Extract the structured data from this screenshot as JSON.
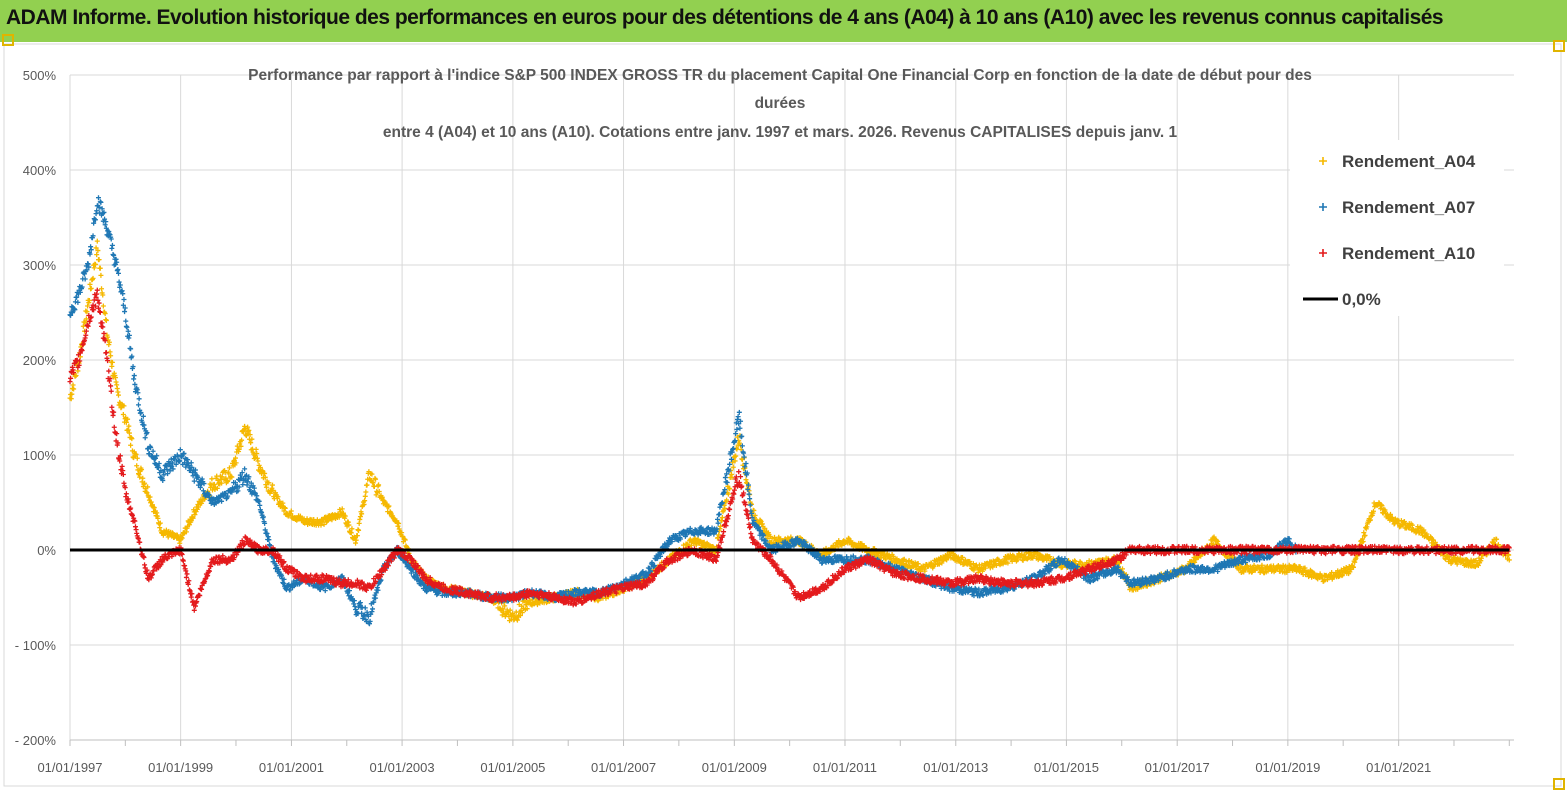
{
  "header": {
    "title": "ADAM Informe. Evolution historique des performances en euros pour des détentions de 4 ans (A04) à 10 ans (A10) avec les revenus connus capitalisés"
  },
  "chart_data": {
    "type": "scatter",
    "title_lines": [
      "Performance par rapport à l'indice S&P 500 INDEX GROSS TR  du placement Capital One Financial Corp en fonction de la date de début pour des",
      "durées",
      "entre 4 (A04) et 10 ans (A10).  Cotations entre janv. 1997 et mars. 2026. Revenus CAPITALISES depuis janv. 1"
    ],
    "xlabel": "",
    "ylabel": "",
    "ylim": [
      -200,
      500
    ],
    "y_ticks": [
      500,
      400,
      300,
      200,
      100,
      0,
      -100,
      -200
    ],
    "y_tick_labels": [
      "500%",
      "400%",
      "300%",
      "200%",
      "100%",
      "0%",
      "- 100%",
      "- 200%"
    ],
    "x_range": [
      "1997-01-01",
      "2023-02-01"
    ],
    "x_tick_labels": [
      "01/01/1997",
      "01/01/1999",
      "01/01/2001",
      "01/01/2003",
      "01/01/2005",
      "01/01/2007",
      "01/01/2009",
      "01/01/2011",
      "01/01/2013",
      "01/01/2015",
      "01/01/2017",
      "01/01/2019",
      "01/01/2021"
    ],
    "grid": true,
    "legend_position": "top-right",
    "colors": {
      "Rendement_A04": "#f5b800",
      "Rendement_A07": "#1f77b4",
      "Rendement_A10": "#e31a1c",
      "0,0%": "#000000"
    },
    "legend": [
      "Rendement_A04",
      "Rendement_A07",
      "Rendement_A10",
      "0,0%"
    ],
    "series": [
      {
        "name": "Rendement_A04",
        "marker": "+",
        "points": [
          [
            "1997-01-01",
            160
          ],
          [
            "1997-03-01",
            200
          ],
          [
            "1997-05-01",
            260
          ],
          [
            "1997-07-01",
            320
          ],
          [
            "1997-09-01",
            230
          ],
          [
            "1997-11-01",
            170
          ],
          [
            "1998-01-01",
            140
          ],
          [
            "1998-03-01",
            100
          ],
          [
            "1998-06-01",
            60
          ],
          [
            "1998-09-01",
            20
          ],
          [
            "1999-01-01",
            10
          ],
          [
            "1999-04-01",
            40
          ],
          [
            "1999-08-01",
            70
          ],
          [
            "1999-12-01",
            80
          ],
          [
            "2000-03-01",
            130
          ],
          [
            "2000-06-01",
            90
          ],
          [
            "2000-09-01",
            60
          ],
          [
            "2000-12-01",
            40
          ],
          [
            "2001-04-01",
            30
          ],
          [
            "2001-08-01",
            30
          ],
          [
            "2001-12-01",
            40
          ],
          [
            "2002-03-01",
            10
          ],
          [
            "2002-06-01",
            80
          ],
          [
            "2002-09-01",
            50
          ],
          [
            "2002-12-01",
            30
          ],
          [
            "2003-03-01",
            -10
          ],
          [
            "2003-06-01",
            -30
          ],
          [
            "2003-10-01",
            -40
          ],
          [
            "2004-03-01",
            -45
          ],
          [
            "2004-08-01",
            -50
          ],
          [
            "2005-01-01",
            -70
          ],
          [
            "2005-05-01",
            -55
          ],
          [
            "2005-10-01",
            -50
          ],
          [
            "2006-03-01",
            -45
          ],
          [
            "2006-08-01",
            -50
          ],
          [
            "2007-01-01",
            -40
          ],
          [
            "2007-06-01",
            -30
          ],
          [
            "2007-11-01",
            -10
          ],
          [
            "2008-04-01",
            10
          ],
          [
            "2008-09-01",
            0
          ],
          [
            "2009-02-01",
            120
          ],
          [
            "2009-05-01",
            40
          ],
          [
            "2009-09-01",
            10
          ],
          [
            "2010-03-01",
            10
          ],
          [
            "2010-08-01",
            -5
          ],
          [
            "2011-01-01",
            10
          ],
          [
            "2011-06-01",
            0
          ],
          [
            "2011-12-01",
            -10
          ],
          [
            "2012-06-01",
            -20
          ],
          [
            "2012-12-01",
            -5
          ],
          [
            "2013-06-01",
            -20
          ],
          [
            "2013-12-01",
            -10
          ],
          [
            "2014-06-01",
            -5
          ],
          [
            "2014-12-01",
            -15
          ],
          [
            "2015-06-01",
            -15
          ],
          [
            "2015-12-01",
            -10
          ],
          [
            "2016-03-01",
            -40
          ],
          [
            "2016-09-01",
            -30
          ],
          [
            "2017-03-01",
            -20
          ],
          [
            "2017-09-01",
            10
          ],
          [
            "2018-03-01",
            -20
          ],
          [
            "2018-09-01",
            -20
          ],
          [
            "2019-03-01",
            -20
          ],
          [
            "2019-09-01",
            -30
          ],
          [
            "2020-03-01",
            -20
          ],
          [
            "2020-08-01",
            50
          ],
          [
            "2020-12-01",
            30
          ],
          [
            "2021-06-01",
            20
          ],
          [
            "2021-12-01",
            -10
          ],
          [
            "2022-06-01",
            -15
          ],
          [
            "2022-10-01",
            10
          ],
          [
            "2023-01-01",
            -10
          ]
        ]
      },
      {
        "name": "Rendement_A07",
        "marker": "+",
        "points": [
          [
            "1997-01-01",
            250
          ],
          [
            "1997-03-01",
            270
          ],
          [
            "1997-05-01",
            300
          ],
          [
            "1997-07-01",
            370
          ],
          [
            "1997-09-01",
            340
          ],
          [
            "1997-11-01",
            300
          ],
          [
            "1998-01-01",
            250
          ],
          [
            "1998-03-01",
            180
          ],
          [
            "1998-06-01",
            110
          ],
          [
            "1998-09-01",
            80
          ],
          [
            "1999-01-01",
            100
          ],
          [
            "1999-04-01",
            80
          ],
          [
            "1999-08-01",
            50
          ],
          [
            "1999-12-01",
            60
          ],
          [
            "2000-03-01",
            80
          ],
          [
            "2000-06-01",
            50
          ],
          [
            "2000-09-01",
            -10
          ],
          [
            "2000-12-01",
            -40
          ],
          [
            "2001-04-01",
            -30
          ],
          [
            "2001-08-01",
            -40
          ],
          [
            "2001-12-01",
            -30
          ],
          [
            "2002-03-01",
            -60
          ],
          [
            "2002-06-01",
            -70
          ],
          [
            "2002-09-01",
            -20
          ],
          [
            "2002-12-01",
            0
          ],
          [
            "2003-03-01",
            -20
          ],
          [
            "2003-06-01",
            -40
          ],
          [
            "2003-10-01",
            -45
          ],
          [
            "2004-03-01",
            -45
          ],
          [
            "2004-08-01",
            -50
          ],
          [
            "2005-01-01",
            -50
          ],
          [
            "2005-05-01",
            -45
          ],
          [
            "2005-10-01",
            -50
          ],
          [
            "2006-03-01",
            -45
          ],
          [
            "2006-08-01",
            -45
          ],
          [
            "2007-01-01",
            -35
          ],
          [
            "2007-06-01",
            -25
          ],
          [
            "2007-11-01",
            10
          ],
          [
            "2008-04-01",
            20
          ],
          [
            "2008-09-01",
            20
          ],
          [
            "2009-02-01",
            140
          ],
          [
            "2009-05-01",
            30
          ],
          [
            "2009-09-01",
            0
          ],
          [
            "2010-03-01",
            10
          ],
          [
            "2010-08-01",
            -10
          ],
          [
            "2011-01-01",
            -10
          ],
          [
            "2011-06-01",
            -10
          ],
          [
            "2011-12-01",
            -20
          ],
          [
            "2012-06-01",
            -30
          ],
          [
            "2012-12-01",
            -40
          ],
          [
            "2013-06-01",
            -45
          ],
          [
            "2013-12-01",
            -40
          ],
          [
            "2014-06-01",
            -30
          ],
          [
            "2014-12-01",
            -10
          ],
          [
            "2015-06-01",
            -30
          ],
          [
            "2015-12-01",
            -20
          ],
          [
            "2016-03-01",
            -35
          ],
          [
            "2016-09-01",
            -30
          ],
          [
            "2017-03-01",
            -20
          ],
          [
            "2017-09-01",
            -20
          ],
          [
            "2018-03-01",
            -10
          ],
          [
            "2018-09-01",
            -5
          ],
          [
            "2019-01-01",
            10
          ],
          [
            "2019-03-01",
            0
          ]
        ]
      },
      {
        "name": "Rendement_A10",
        "marker": "+",
        "points": [
          [
            "1997-01-01",
            180
          ],
          [
            "1997-03-01",
            200
          ],
          [
            "1997-05-01",
            240
          ],
          [
            "1997-07-01",
            270
          ],
          [
            "1997-09-01",
            200
          ],
          [
            "1997-11-01",
            120
          ],
          [
            "1998-01-01",
            60
          ],
          [
            "1998-03-01",
            30
          ],
          [
            "1998-06-01",
            -30
          ],
          [
            "1998-09-01",
            -10
          ],
          [
            "1999-01-01",
            0
          ],
          [
            "1999-04-01",
            -60
          ],
          [
            "1999-08-01",
            -10
          ],
          [
            "1999-12-01",
            -10
          ],
          [
            "2000-03-01",
            10
          ],
          [
            "2000-06-01",
            0
          ],
          [
            "2000-09-01",
            0
          ],
          [
            "2000-12-01",
            -20
          ],
          [
            "2001-04-01",
            -30
          ],
          [
            "2001-08-01",
            -30
          ],
          [
            "2001-12-01",
            -35
          ],
          [
            "2002-03-01",
            -35
          ],
          [
            "2002-06-01",
            -40
          ],
          [
            "2002-09-01",
            -20
          ],
          [
            "2002-12-01",
            0
          ],
          [
            "2003-03-01",
            -10
          ],
          [
            "2003-06-01",
            -30
          ],
          [
            "2003-10-01",
            -40
          ],
          [
            "2004-03-01",
            -45
          ],
          [
            "2004-08-01",
            -50
          ],
          [
            "2005-01-01",
            -50
          ],
          [
            "2005-05-01",
            -45
          ],
          [
            "2005-10-01",
            -50
          ],
          [
            "2006-03-01",
            -55
          ],
          [
            "2006-08-01",
            -45
          ],
          [
            "2007-01-01",
            -40
          ],
          [
            "2007-06-01",
            -35
          ],
          [
            "2007-11-01",
            -10
          ],
          [
            "2008-04-01",
            0
          ],
          [
            "2008-09-01",
            -10
          ],
          [
            "2009-02-01",
            80
          ],
          [
            "2009-05-01",
            10
          ],
          [
            "2009-09-01",
            -10
          ],
          [
            "2010-03-01",
            -50
          ],
          [
            "2010-08-01",
            -40
          ],
          [
            "2011-01-01",
            -20
          ],
          [
            "2011-06-01",
            -10
          ],
          [
            "2011-12-01",
            -25
          ],
          [
            "2012-06-01",
            -30
          ],
          [
            "2012-12-01",
            -35
          ],
          [
            "2013-06-01",
            -30
          ],
          [
            "2013-12-01",
            -35
          ],
          [
            "2014-06-01",
            -35
          ],
          [
            "2014-12-01",
            -30
          ],
          [
            "2015-06-01",
            -20
          ],
          [
            "2015-12-01",
            -10
          ],
          [
            "2016-03-01",
            0
          ],
          [
            "2017-03-01",
            0
          ],
          [
            "2018-03-01",
            0
          ],
          [
            "2019-03-01",
            0
          ],
          [
            "2020-03-01",
            0
          ],
          [
            "2021-03-01",
            0
          ],
          [
            "2022-03-01",
            0
          ],
          [
            "2023-01-01",
            0
          ]
        ]
      },
      {
        "name": "0,0%",
        "marker": "line",
        "points": [
          [
            "1997-01-01",
            0
          ],
          [
            "2023-01-01",
            0
          ]
        ]
      }
    ]
  }
}
